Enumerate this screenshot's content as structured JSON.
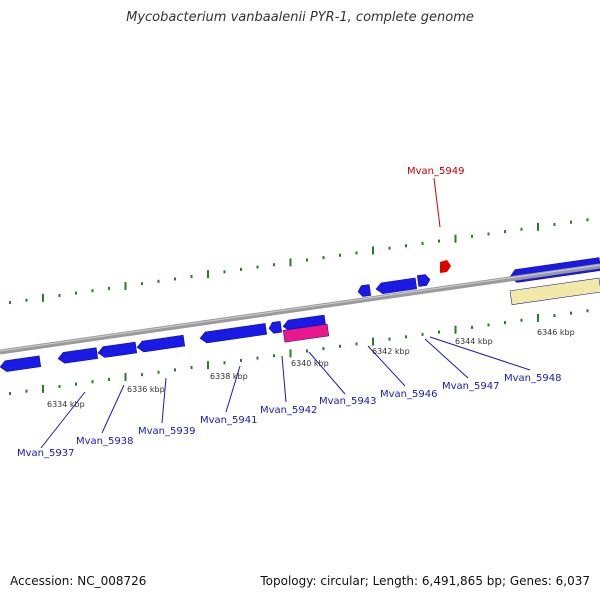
{
  "title": "Mycobacterium vanbaalenii PYR-1, complete genome",
  "footer": {
    "accession": "Accession: NC_008726",
    "summary": "Topology: circular; Length: 6,491,865 bp; Genes: 6,037"
  },
  "colors": {
    "backbone": "#8a8a8a",
    "forward_gene": "#1a1ae6",
    "highlight_gene": "#e8188a",
    "selected_gene": "#e00000",
    "rna_feature": "#f2e8a8",
    "tick": "#2a7a2a",
    "gene_label": "#1a1ab4",
    "selected_label": "#cc0000"
  },
  "ticks": [
    "6334 kbp",
    "6336 kbp",
    "6338 kbp",
    "6340 kbp",
    "6342 kbp",
    "6344 kbp",
    "6346 kbp"
  ],
  "gene_labels": [
    {
      "id": "Mvan_5937",
      "selected": false
    },
    {
      "id": "Mvan_5938",
      "selected": false
    },
    {
      "id": "Mvan_5939",
      "selected": false
    },
    {
      "id": "Mvan_5941",
      "selected": false
    },
    {
      "id": "Mvan_5942",
      "selected": false
    },
    {
      "id": "Mvan_5943",
      "selected": false
    },
    {
      "id": "Mvan_5946",
      "selected": false
    },
    {
      "id": "Mvan_5947",
      "selected": false
    },
    {
      "id": "Mvan_5948",
      "selected": false
    },
    {
      "id": "Mvan_5949",
      "selected": true
    }
  ]
}
